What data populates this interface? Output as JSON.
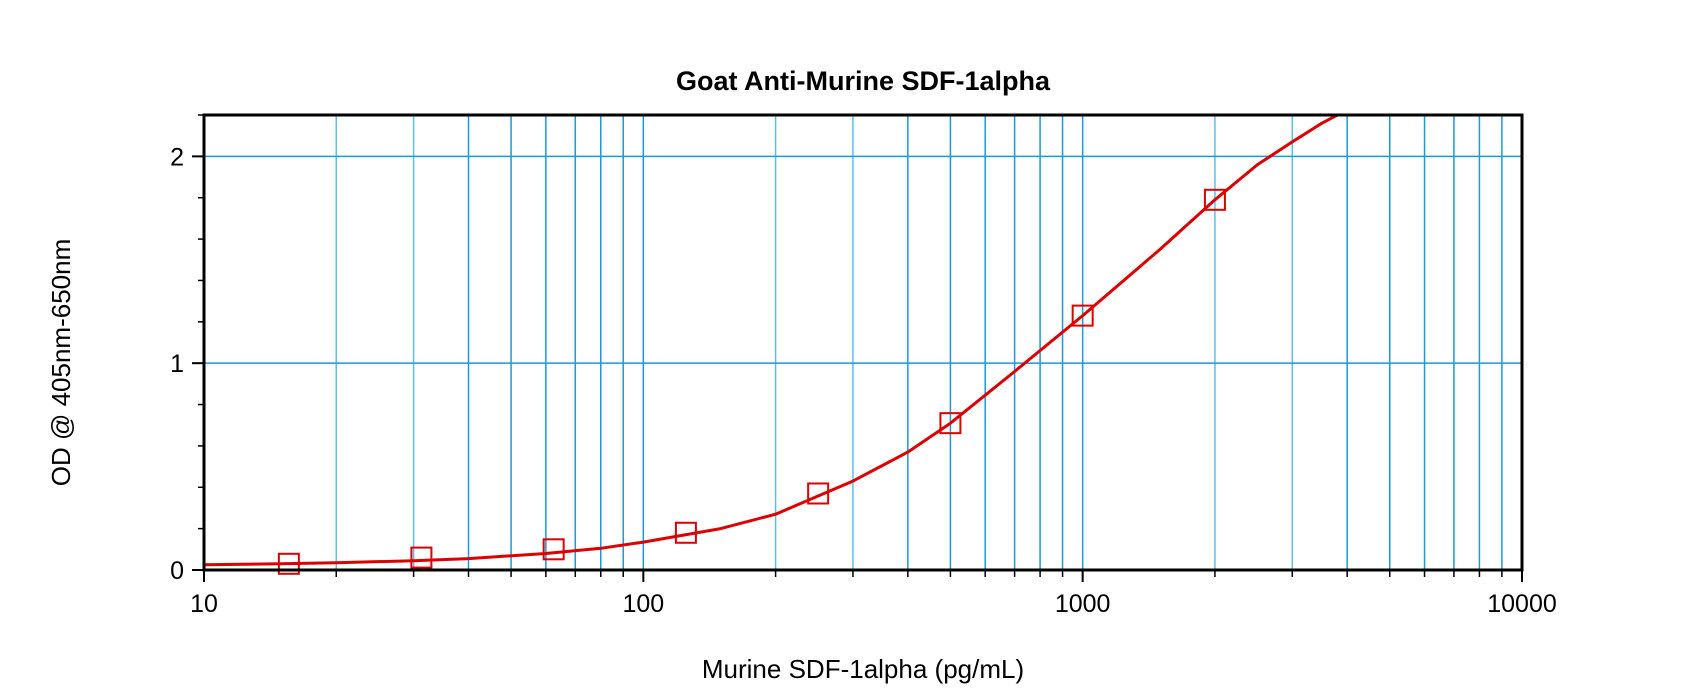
{
  "chart_data": {
    "type": "scatter",
    "title": "Goat Anti-Murine SDF-1alpha",
    "xlabel": "Murine SDF-1alpha (pg/mL)",
    "ylabel": "OD @ 405nm-650nm",
    "xscale": "log",
    "xlim": [
      10,
      10000
    ],
    "ylim": [
      0,
      2.2
    ],
    "x_ticks": [
      {
        "value": 10,
        "label": "10"
      },
      {
        "value": 100,
        "label": "100"
      },
      {
        "value": 1000,
        "label": "1000"
      },
      {
        "value": 10000,
        "label": "10000"
      }
    ],
    "y_ticks": [
      {
        "value": 0,
        "label": "0"
      },
      {
        "value": 1,
        "label": "1"
      },
      {
        "value": 2,
        "label": "2"
      }
    ],
    "grid": true,
    "series": [
      {
        "marker": "open-square",
        "color": "#dd0000",
        "x": [
          15.6,
          31.25,
          62.5,
          125,
          250,
          500,
          1000,
          2000
        ],
        "y": [
          0.03,
          0.06,
          0.1,
          0.18,
          0.37,
          0.71,
          1.23,
          1.79
        ]
      }
    ],
    "fit_curve": {
      "color": "#dd0000",
      "x": [
        10,
        15,
        20,
        30,
        40,
        60,
        80,
        100,
        150,
        200,
        300,
        400,
        500,
        700,
        1000,
        1500,
        2000,
        2500,
        3000,
        3500,
        3800
      ],
      "y": [
        0.025,
        0.03,
        0.035,
        0.045,
        0.055,
        0.08,
        0.105,
        0.135,
        0.2,
        0.27,
        0.43,
        0.57,
        0.71,
        0.96,
        1.23,
        1.55,
        1.79,
        1.96,
        2.07,
        2.16,
        2.2
      ]
    },
    "colors": {
      "grid_major": "#1a9ad6",
      "grid_minor": "#5bc0e8",
      "data": "#dd0000",
      "frame": "#000000"
    }
  }
}
